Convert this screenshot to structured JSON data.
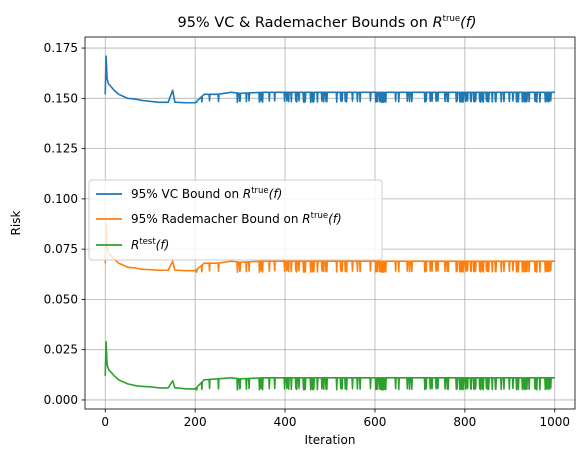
{
  "chart_data": {
    "type": "line",
    "title": {
      "prefix": "95% VC & Rademacher Bounds on ",
      "var": "R",
      "sup": "true",
      "arg": "(f)"
    },
    "xlabel": "Iteration",
    "ylabel": "Risk",
    "xlim": [
      -45,
      1045
    ],
    "ylim": [
      -0.0045,
      0.1805
    ],
    "xticks": [
      0,
      200,
      400,
      600,
      800,
      1000
    ],
    "yticks": [
      0.0,
      0.025,
      0.05,
      0.075,
      0.1,
      0.125,
      0.15,
      0.175
    ],
    "ytick_labels": [
      "0.000",
      "0.025",
      "0.050",
      "0.075",
      "0.100",
      "0.125",
      "0.150",
      "0.175"
    ],
    "grid": true,
    "legend_position": "center-left",
    "series": [
      {
        "name": {
          "prefix": "95% VC Bound on ",
          "var": "R",
          "sup": "true",
          "arg": "(f)"
        },
        "color": "#1f77b4",
        "x": [
          0,
          2,
          4,
          6,
          8,
          12,
          16,
          20,
          25,
          30,
          40,
          50,
          60,
          70,
          80,
          100,
          120,
          140,
          150,
          155,
          160,
          180,
          200,
          220,
          250,
          280,
          300,
          350,
          400,
          500,
          600,
          700,
          800,
          900,
          1000
        ],
        "y": [
          0.152,
          0.171,
          0.16,
          0.158,
          0.157,
          0.156,
          0.155,
          0.154,
          0.153,
          0.152,
          0.151,
          0.15,
          0.1498,
          0.1495,
          0.149,
          0.1485,
          0.148,
          0.148,
          0.154,
          0.148,
          0.148,
          0.1478,
          0.1478,
          0.152,
          0.152,
          0.153,
          0.1525,
          0.153,
          0.153,
          0.153,
          0.153,
          0.153,
          0.153,
          0.153,
          0.153
        ],
        "noise": {
          "start": 200,
          "end": 1000,
          "low": 0.148
        }
      },
      {
        "name": {
          "prefix": "95% Rademacher Bound on ",
          "var": "R",
          "sup": "true",
          "arg": "(f)"
        },
        "color": "#ff7f0e",
        "x": [
          0,
          2,
          4,
          6,
          8,
          12,
          16,
          20,
          25,
          30,
          40,
          50,
          60,
          70,
          80,
          100,
          120,
          140,
          150,
          155,
          160,
          180,
          200,
          220,
          250,
          280,
          300,
          350,
          400,
          500,
          600,
          700,
          800,
          900,
          1000
        ],
        "y": [
          0.068,
          0.088,
          0.076,
          0.074,
          0.073,
          0.072,
          0.071,
          0.07,
          0.069,
          0.068,
          0.067,
          0.066,
          0.0658,
          0.0655,
          0.065,
          0.0648,
          0.0645,
          0.0645,
          0.069,
          0.0645,
          0.0645,
          0.0643,
          0.0643,
          0.068,
          0.068,
          0.069,
          0.0685,
          0.069,
          0.069,
          0.069,
          0.069,
          0.069,
          0.069,
          0.069,
          0.069
        ],
        "noise": {
          "start": 200,
          "end": 1000,
          "low": 0.0635
        }
      },
      {
        "name": {
          "prefix": "",
          "var": "R",
          "sup": "test",
          "arg": "(f)"
        },
        "color": "#2ca02c",
        "x": [
          0,
          2,
          4,
          6,
          8,
          12,
          16,
          20,
          25,
          30,
          40,
          50,
          60,
          70,
          80,
          100,
          120,
          140,
          150,
          155,
          160,
          180,
          200,
          220,
          250,
          280,
          300,
          350,
          400,
          500,
          600,
          700,
          800,
          900,
          1000
        ],
        "y": [
          0.012,
          0.029,
          0.018,
          0.016,
          0.015,
          0.014,
          0.013,
          0.012,
          0.011,
          0.01,
          0.009,
          0.008,
          0.0075,
          0.007,
          0.0068,
          0.0065,
          0.006,
          0.006,
          0.0095,
          0.006,
          0.006,
          0.0055,
          0.0055,
          0.01,
          0.0105,
          0.011,
          0.0105,
          0.011,
          0.011,
          0.011,
          0.011,
          0.011,
          0.011,
          0.011,
          0.011
        ],
        "noise": {
          "start": 200,
          "end": 1000,
          "low": 0.005
        }
      }
    ]
  }
}
